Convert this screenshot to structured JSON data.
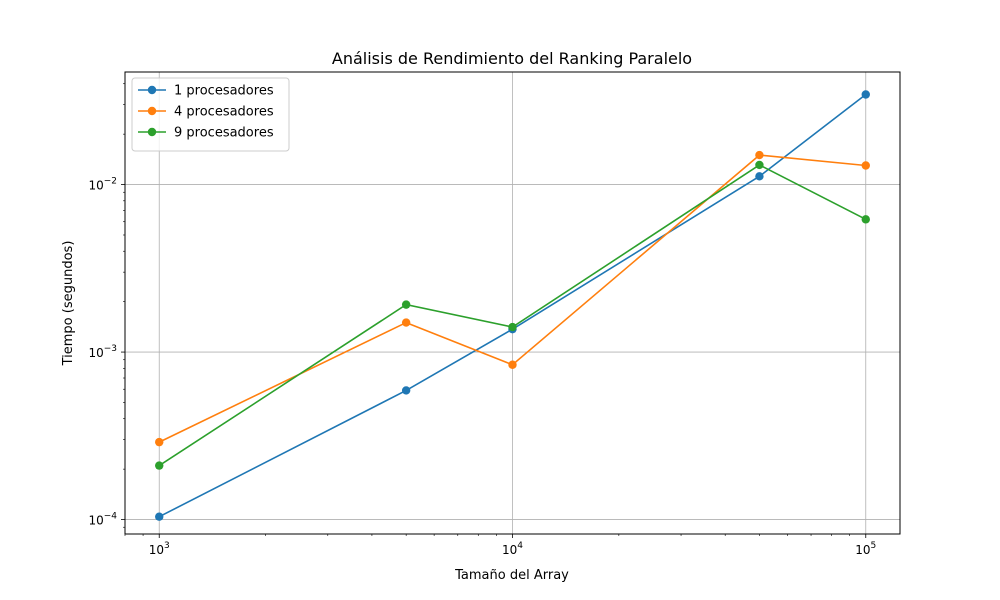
{
  "chart_data": {
    "type": "line",
    "title": "Análisis de Rendimiento del Ranking Paralelo",
    "xlabel": "Tamaño del Array",
    "ylabel": "Tiempo (segundos)",
    "x_scale": "log",
    "y_scale": "log",
    "xlim": [
      800,
      125000
    ],
    "ylim": [
      8.2e-05,
      0.047
    ],
    "grid": true,
    "legend_position": "top-left",
    "x_ticks": [
      {
        "value": 1000,
        "base": "10",
        "exp": "3"
      },
      {
        "value": 10000,
        "base": "10",
        "exp": "4"
      },
      {
        "value": 100000,
        "base": "10",
        "exp": "5"
      }
    ],
    "y_ticks": [
      {
        "value": 0.0001,
        "base": "10",
        "exp": "−4"
      },
      {
        "value": 0.001,
        "base": "10",
        "exp": "−3"
      },
      {
        "value": 0.01,
        "base": "10",
        "exp": "−2"
      }
    ],
    "x": [
      1000,
      5000,
      10000,
      50000,
      100000
    ],
    "series": [
      {
        "name": "1 procesadores",
        "color": "#1f77b4",
        "values": [
          0.000104,
          0.00059,
          0.00137,
          0.0112,
          0.0345
        ]
      },
      {
        "name": "4 procesadores",
        "color": "#ff7f0e",
        "values": [
          0.00029,
          0.0015,
          0.00084,
          0.015,
          0.013
        ]
      },
      {
        "name": "9 procesadores",
        "color": "#2ca02c",
        "values": [
          0.00021,
          0.00192,
          0.00141,
          0.0131,
          0.0062
        ]
      }
    ]
  }
}
